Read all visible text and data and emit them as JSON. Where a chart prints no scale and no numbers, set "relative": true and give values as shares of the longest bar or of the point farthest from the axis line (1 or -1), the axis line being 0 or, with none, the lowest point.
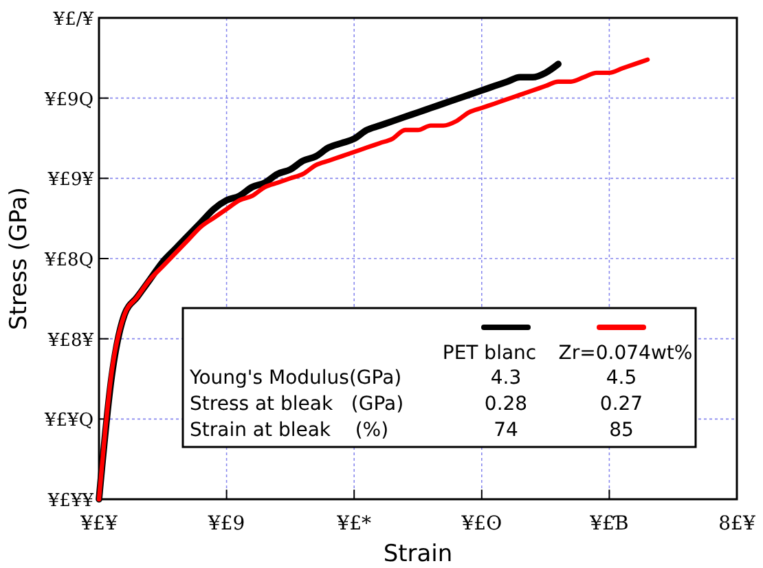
{
  "chart_data": {
    "type": "line",
    "xlabel": "Strain",
    "ylabel": "Stress (GPa)",
    "relative": true,
    "categories": [
      "¥£¥",
      null,
      null,
      null,
      null,
      null,
      null,
      null,
      null,
      null,
      "¥£9",
      null,
      null,
      null,
      null,
      null,
      null,
      null,
      null,
      null,
      "¥£*",
      null,
      null,
      null,
      null,
      null,
      null,
      null,
      null,
      null,
      "¥£ʘ",
      null,
      null,
      null,
      null,
      null,
      null,
      null,
      null,
      null,
      "¥£Ɓ",
      null,
      null,
      null,
      null,
      null,
      null,
      null,
      null,
      null,
      "8£¥"
    ],
    "grid": true,
    "legend": "bottom right",
    "marker": "none",
    "line_style": "solid",
    "series": [
      {
        "name": "PET blanc",
        "color": "#000000",
        "values": [
          0,
          0.28,
          0.42,
          0.46,
          0.5,
          0.54,
          0.57,
          0.6,
          0.63,
          0.66,
          0.68,
          0.69,
          0.71,
          0.72,
          0.74,
          0.75,
          0.77,
          0.78,
          0.8,
          0.81,
          0.82,
          0.84,
          0.85,
          0.86,
          0.87,
          0.88,
          0.89,
          0.9,
          0.91,
          0.92,
          0.93,
          0.94,
          0.95,
          0.96,
          0.96,
          0.97,
          0.99,
          null,
          null,
          null,
          null,
          null,
          null,
          null,
          null,
          null,
          null,
          null,
          null,
          null,
          null
        ]
      },
      {
        "name": "Zr=0.074wt%",
        "color": "#ff0000",
        "values": [
          0,
          0.29,
          0.42,
          0.46,
          0.5,
          0.53,
          0.56,
          0.59,
          0.62,
          0.64,
          0.66,
          0.68,
          0.69,
          0.71,
          0.72,
          0.73,
          0.74,
          0.76,
          0.77,
          0.78,
          0.79,
          0.8,
          0.81,
          0.82,
          0.84,
          0.84,
          0.85,
          0.85,
          0.86,
          0.88,
          0.89,
          0.9,
          0.91,
          0.92,
          0.93,
          0.94,
          0.95,
          0.95,
          0.96,
          0.97,
          0.97,
          0.98,
          0.99,
          1,
          null,
          null,
          null,
          null,
          null,
          null,
          null
        ]
      }
    ],
    "annotations": [
      "Young's Modulus(GPa)",
      "4.3",
      "4.5",
      "Stress at bleak   (GPa)",
      "0.28",
      "0.27",
      "Strain at bleak    (%)",
      "74",
      "85",
      "¥£¥¥",
      "¥£¥Q",
      "¥£8¥",
      "¥£8Q",
      "¥£9¥",
      "¥£9Q",
      "¥£/¥"
    ]
  }
}
